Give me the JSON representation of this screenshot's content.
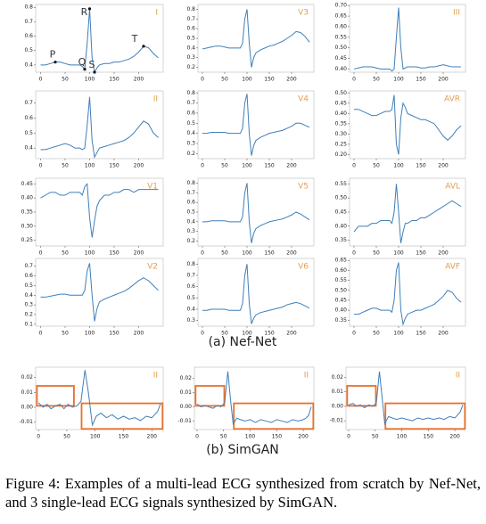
{
  "chart_data": [
    {
      "type": "line",
      "lead": "I",
      "color": "#3f7fba",
      "xlim": [
        -10,
        250
      ],
      "ylim": [
        0.35,
        0.82
      ],
      "xticks": [
        0,
        50,
        100,
        150,
        200
      ],
      "yticks": [
        0.4,
        0.5,
        0.6,
        0.7,
        0.8
      ],
      "x": [
        0,
        10,
        20,
        30,
        40,
        50,
        60,
        70,
        80,
        85,
        90,
        95,
        100,
        105,
        110,
        115,
        120,
        130,
        140,
        150,
        160,
        170,
        180,
        190,
        200,
        210,
        220,
        230,
        240
      ],
      "values": [
        0.4,
        0.4,
        0.41,
        0.42,
        0.42,
        0.41,
        0.4,
        0.4,
        0.4,
        0.39,
        0.37,
        0.55,
        0.79,
        0.45,
        0.35,
        0.38,
        0.4,
        0.41,
        0.41,
        0.42,
        0.42,
        0.43,
        0.44,
        0.46,
        0.49,
        0.53,
        0.52,
        0.48,
        0.45
      ],
      "annotations": [
        {
          "label": "P",
          "x": 30,
          "y": 0.42
        },
        {
          "label": "Q",
          "x": 90,
          "y": 0.37
        },
        {
          "label": "R",
          "x": 100,
          "y": 0.79
        },
        {
          "label": "S",
          "x": 110,
          "y": 0.35
        },
        {
          "label": "T",
          "x": 210,
          "y": 0.53
        }
      ]
    },
    {
      "type": "line",
      "lead": "V3",
      "color": "#3f7fba",
      "xlim": [
        -10,
        250
      ],
      "ylim": [
        0.15,
        0.85
      ],
      "xticks": [
        0,
        50,
        100,
        150,
        200
      ],
      "yticks": [
        0.2,
        0.3,
        0.4,
        0.5,
        0.6,
        0.7,
        0.8
      ],
      "x": [
        0,
        10,
        20,
        30,
        40,
        50,
        60,
        70,
        80,
        85,
        90,
        95,
        100,
        105,
        110,
        115,
        120,
        130,
        140,
        150,
        160,
        170,
        180,
        190,
        200,
        210,
        220,
        230,
        240
      ],
      "values": [
        0.39,
        0.4,
        0.41,
        0.42,
        0.42,
        0.41,
        0.4,
        0.4,
        0.4,
        0.4,
        0.45,
        0.7,
        0.8,
        0.45,
        0.2,
        0.3,
        0.35,
        0.38,
        0.4,
        0.42,
        0.43,
        0.45,
        0.47,
        0.5,
        0.53,
        0.57,
        0.56,
        0.52,
        0.46
      ]
    },
    {
      "type": "line",
      "lead": "III",
      "color": "#3f7fba",
      "xlim": [
        -10,
        250
      ],
      "ylim": [
        0.385,
        0.705
      ],
      "xticks": [
        0,
        50,
        100,
        150,
        200
      ],
      "yticks": [
        {
          "value": 0.4,
          "label": "0.40"
        },
        0.45,
        {
          "value": 0.5,
          "label": "0.50"
        },
        0.55,
        {
          "value": 0.6,
          "label": "0.60"
        },
        0.65,
        {
          "value": 0.7,
          "label": "0.70"
        }
      ],
      "x": [
        0,
        10,
        20,
        30,
        40,
        50,
        60,
        70,
        80,
        85,
        90,
        95,
        100,
        105,
        110,
        115,
        120,
        130,
        140,
        150,
        160,
        170,
        180,
        190,
        200,
        210,
        220,
        230,
        240
      ],
      "values": [
        0.4,
        0.405,
        0.41,
        0.41,
        0.41,
        0.405,
        0.4,
        0.4,
        0.4,
        0.39,
        0.4,
        0.55,
        0.69,
        0.5,
        0.4,
        0.405,
        0.41,
        0.41,
        0.41,
        0.405,
        0.405,
        0.41,
        0.41,
        0.415,
        0.42,
        0.415,
        0.41,
        0.41,
        0.41
      ]
    },
    {
      "type": "line",
      "lead": "II",
      "color": "#3f7fba",
      "xlim": [
        -10,
        250
      ],
      "ylim": [
        0.33,
        0.78
      ],
      "xticks": [
        0,
        50,
        100,
        150,
        200
      ],
      "yticks": [
        0.4,
        0.5,
        0.6,
        0.7
      ],
      "x": [
        0,
        10,
        20,
        30,
        40,
        50,
        60,
        70,
        80,
        85,
        90,
        95,
        100,
        105,
        110,
        115,
        120,
        130,
        140,
        150,
        160,
        170,
        180,
        190,
        200,
        210,
        220,
        230,
        240
      ],
      "values": [
        0.39,
        0.39,
        0.4,
        0.41,
        0.42,
        0.43,
        0.42,
        0.4,
        0.4,
        0.39,
        0.4,
        0.55,
        0.74,
        0.45,
        0.34,
        0.37,
        0.4,
        0.41,
        0.42,
        0.43,
        0.44,
        0.45,
        0.47,
        0.5,
        0.54,
        0.58,
        0.56,
        0.5,
        0.47
      ]
    },
    {
      "type": "line",
      "lead": "V4",
      "color": "#3f7fba",
      "xlim": [
        -10,
        250
      ],
      "ylim": [
        0.15,
        0.82
      ],
      "xticks": [
        0,
        50,
        100,
        150,
        200
      ],
      "yticks": [
        0.2,
        0.3,
        0.4,
        0.5,
        0.6,
        0.7,
        0.8
      ],
      "x": [
        0,
        10,
        20,
        30,
        40,
        50,
        60,
        70,
        80,
        85,
        90,
        95,
        100,
        105,
        110,
        115,
        120,
        130,
        140,
        150,
        160,
        170,
        180,
        190,
        200,
        210,
        220,
        230,
        240
      ],
      "values": [
        0.4,
        0.4,
        0.41,
        0.41,
        0.41,
        0.41,
        0.4,
        0.4,
        0.4,
        0.4,
        0.45,
        0.7,
        0.79,
        0.4,
        0.18,
        0.28,
        0.33,
        0.36,
        0.38,
        0.4,
        0.41,
        0.42,
        0.43,
        0.45,
        0.47,
        0.5,
        0.5,
        0.48,
        0.46
      ]
    },
    {
      "type": "line",
      "lead": "AVR",
      "color": "#3f7fba",
      "xlim": [
        -10,
        250
      ],
      "ylim": [
        0.18,
        0.51
      ],
      "xticks": [
        0,
        50,
        100,
        150,
        200
      ],
      "yticks": [
        {
          "value": 0.2,
          "label": "0.20"
        },
        0.25,
        {
          "value": 0.3,
          "label": "0.30"
        },
        0.35,
        {
          "value": 0.4,
          "label": "0.40"
        },
        0.45,
        {
          "value": 0.5,
          "label": "0.50"
        }
      ],
      "x": [
        0,
        10,
        20,
        30,
        40,
        50,
        60,
        70,
        80,
        85,
        90,
        95,
        100,
        105,
        110,
        115,
        120,
        130,
        140,
        150,
        160,
        170,
        180,
        190,
        200,
        210,
        220,
        230,
        240
      ],
      "values": [
        0.42,
        0.42,
        0.41,
        0.4,
        0.39,
        0.39,
        0.4,
        0.41,
        0.41,
        0.42,
        0.49,
        0.25,
        0.2,
        0.38,
        0.45,
        0.43,
        0.4,
        0.39,
        0.38,
        0.37,
        0.37,
        0.36,
        0.35,
        0.32,
        0.29,
        0.27,
        0.29,
        0.32,
        0.34
      ]
    },
    {
      "type": "line",
      "lead": "V1",
      "color": "#3f7fba",
      "xlim": [
        -10,
        250
      ],
      "ylim": [
        0.23,
        0.47
      ],
      "xticks": [
        0,
        50,
        100,
        150,
        200
      ],
      "yticks": [
        0.25,
        {
          "value": 0.3,
          "label": "0.30"
        },
        0.35,
        {
          "value": 0.4,
          "label": "0.40"
        },
        0.45
      ],
      "x": [
        0,
        10,
        20,
        30,
        40,
        50,
        60,
        70,
        80,
        85,
        90,
        95,
        100,
        105,
        110,
        115,
        120,
        130,
        140,
        150,
        160,
        170,
        180,
        190,
        200,
        210,
        220,
        230,
        240
      ],
      "values": [
        0.4,
        0.41,
        0.42,
        0.42,
        0.41,
        0.41,
        0.42,
        0.42,
        0.42,
        0.41,
        0.44,
        0.45,
        0.33,
        0.26,
        0.32,
        0.37,
        0.39,
        0.41,
        0.41,
        0.42,
        0.42,
        0.43,
        0.43,
        0.42,
        0.43,
        0.43,
        0.43,
        0.43,
        0.43
      ]
    },
    {
      "type": "line",
      "lead": "V5",
      "color": "#3f7fba",
      "xlim": [
        -10,
        250
      ],
      "ylim": [
        0.15,
        0.85
      ],
      "xticks": [
        0,
        50,
        100,
        150,
        200
      ],
      "yticks": [
        0.2,
        0.3,
        0.4,
        0.5,
        0.6,
        0.7,
        0.8
      ],
      "x": [
        0,
        10,
        20,
        30,
        40,
        50,
        60,
        70,
        80,
        85,
        90,
        95,
        100,
        105,
        110,
        115,
        120,
        130,
        140,
        150,
        160,
        170,
        180,
        190,
        200,
        210,
        220,
        230,
        240
      ],
      "values": [
        0.4,
        0.4,
        0.41,
        0.41,
        0.41,
        0.41,
        0.4,
        0.4,
        0.4,
        0.4,
        0.45,
        0.7,
        0.8,
        0.4,
        0.18,
        0.28,
        0.33,
        0.36,
        0.38,
        0.4,
        0.41,
        0.42,
        0.43,
        0.45,
        0.47,
        0.5,
        0.48,
        0.45,
        0.42
      ]
    },
    {
      "type": "line",
      "lead": "AVL",
      "color": "#3f7fba",
      "xlim": [
        -10,
        250
      ],
      "ylim": [
        0.33,
        0.57
      ],
      "xticks": [
        0,
        50,
        100,
        150,
        200
      ],
      "yticks": [
        0.35,
        {
          "value": 0.4,
          "label": "0.40"
        },
        0.45,
        {
          "value": 0.5,
          "label": "0.50"
        },
        0.55
      ],
      "x": [
        0,
        10,
        20,
        30,
        40,
        50,
        60,
        70,
        80,
        85,
        90,
        95,
        100,
        105,
        110,
        115,
        120,
        130,
        140,
        150,
        160,
        170,
        180,
        190,
        200,
        210,
        220,
        230,
        240
      ],
      "values": [
        0.38,
        0.4,
        0.4,
        0.4,
        0.41,
        0.41,
        0.42,
        0.42,
        0.42,
        0.41,
        0.45,
        0.55,
        0.45,
        0.34,
        0.38,
        0.41,
        0.41,
        0.42,
        0.42,
        0.43,
        0.43,
        0.44,
        0.45,
        0.46,
        0.47,
        0.48,
        0.49,
        0.48,
        0.47
      ]
    },
    {
      "type": "line",
      "lead": "V2",
      "color": "#3f7fba",
      "xlim": [
        -10,
        250
      ],
      "ylim": [
        0.08,
        0.78
      ],
      "xticks": [
        0,
        50,
        100,
        150,
        200
      ],
      "yticks": [
        0.1,
        0.2,
        0.3,
        0.4,
        0.5,
        0.6,
        0.7
      ],
      "x": [
        0,
        10,
        20,
        30,
        40,
        50,
        60,
        70,
        80,
        85,
        90,
        95,
        100,
        105,
        110,
        115,
        120,
        130,
        140,
        150,
        160,
        170,
        180,
        190,
        200,
        210,
        220,
        230,
        240
      ],
      "values": [
        0.38,
        0.38,
        0.39,
        0.4,
        0.41,
        0.41,
        0.4,
        0.4,
        0.4,
        0.4,
        0.45,
        0.65,
        0.73,
        0.4,
        0.13,
        0.26,
        0.33,
        0.36,
        0.38,
        0.4,
        0.42,
        0.44,
        0.47,
        0.51,
        0.55,
        0.58,
        0.55,
        0.5,
        0.45
      ]
    },
    {
      "type": "line",
      "lead": "V6",
      "color": "#3f7fba",
      "xlim": [
        -10,
        250
      ],
      "ylim": [
        0.25,
        0.85
      ],
      "xticks": [
        0,
        50,
        100,
        150,
        200
      ],
      "yticks": [
        0.3,
        0.4,
        0.5,
        0.6,
        0.7,
        0.8
      ],
      "x": [
        0,
        10,
        20,
        30,
        40,
        50,
        60,
        70,
        80,
        85,
        90,
        95,
        100,
        105,
        110,
        115,
        120,
        130,
        140,
        150,
        160,
        170,
        180,
        190,
        200,
        210,
        220,
        230,
        240
      ],
      "values": [
        0.39,
        0.39,
        0.4,
        0.4,
        0.4,
        0.4,
        0.39,
        0.39,
        0.39,
        0.39,
        0.45,
        0.7,
        0.8,
        0.45,
        0.27,
        0.32,
        0.35,
        0.37,
        0.38,
        0.39,
        0.4,
        0.41,
        0.42,
        0.44,
        0.45,
        0.46,
        0.45,
        0.43,
        0.41
      ]
    },
    {
      "type": "line",
      "lead": "AVF",
      "color": "#3f7fba",
      "xlim": [
        -10,
        250
      ],
      "ylim": [
        0.32,
        0.66
      ],
      "xticks": [
        0,
        50,
        100,
        150,
        200
      ],
      "yticks": [
        0.35,
        {
          "value": 0.4,
          "label": "0.40"
        },
        0.45,
        {
          "value": 0.5,
          "label": "0.50"
        },
        0.55,
        {
          "value": 0.6,
          "label": "0.60"
        },
        0.65
      ],
      "x": [
        0,
        10,
        20,
        30,
        40,
        50,
        60,
        70,
        80,
        85,
        90,
        95,
        100,
        105,
        110,
        115,
        120,
        130,
        140,
        150,
        160,
        170,
        180,
        190,
        200,
        210,
        220,
        230,
        240
      ],
      "values": [
        0.38,
        0.38,
        0.39,
        0.4,
        0.41,
        0.41,
        0.4,
        0.4,
        0.4,
        0.39,
        0.45,
        0.6,
        0.64,
        0.4,
        0.33,
        0.36,
        0.38,
        0.39,
        0.4,
        0.4,
        0.41,
        0.42,
        0.43,
        0.45,
        0.47,
        0.5,
        0.49,
        0.46,
        0.44
      ]
    },
    {
      "type": "line",
      "lead": "II",
      "color": "#3f7fba",
      "xlim": [
        -5,
        220
      ],
      "ylim": [
        -0.015,
        0.027
      ],
      "xticks": [
        0,
        50,
        100,
        150,
        200
      ],
      "yticks": [
        -0.01,
        {
          "value": 0,
          "label": "0.00"
        },
        0.01,
        0.02
      ],
      "x": [
        0,
        8,
        15,
        22,
        30,
        38,
        45,
        52,
        60,
        68,
        75,
        82,
        88,
        95,
        102,
        110,
        120,
        130,
        140,
        150,
        160,
        170,
        180,
        190,
        200,
        205,
        210,
        215
      ],
      "values": [
        0.003,
        0.0,
        0.002,
        -0.001,
        0.001,
        0.002,
        -0.001,
        0.002,
        0.0,
        0.001,
        0.004,
        0.025,
        0.01,
        -0.012,
        -0.006,
        -0.004,
        -0.007,
        -0.005,
        -0.008,
        -0.006,
        -0.008,
        -0.007,
        -0.009,
        -0.006,
        -0.007,
        -0.005,
        -0.003,
        0.002
      ]
    },
    {
      "type": "line",
      "lead": "II",
      "color": "#3f7fba",
      "xlim": [
        -5,
        220
      ],
      "ylim": [
        -0.016,
        0.028
      ],
      "xticks": [
        0,
        50,
        100,
        150,
        200
      ],
      "yticks": [
        -0.01,
        {
          "value": 0,
          "label": "0.00"
        },
        0.01,
        0.02
      ],
      "x": [
        0,
        8,
        15,
        22,
        30,
        38,
        45,
        52,
        58,
        63,
        68,
        75,
        82,
        90,
        100,
        110,
        120,
        130,
        140,
        150,
        160,
        170,
        180,
        190,
        200,
        205,
        210,
        215
      ],
      "values": [
        0.002,
        0.0,
        0.001,
        0.0,
        -0.001,
        0.001,
        0.0,
        0.003,
        0.025,
        0.005,
        -0.012,
        -0.008,
        -0.009,
        -0.01,
        -0.009,
        -0.011,
        -0.009,
        -0.01,
        -0.011,
        -0.009,
        -0.01,
        -0.011,
        -0.009,
        -0.01,
        -0.009,
        -0.008,
        -0.006,
        0.0
      ]
    },
    {
      "type": "line",
      "lead": "II",
      "color": "#3f7fba",
      "xlim": [
        -5,
        220
      ],
      "ylim": [
        -0.016,
        0.027
      ],
      "xticks": [
        0,
        50,
        100,
        150,
        200
      ],
      "yticks": [
        -0.01,
        {
          "value": 0,
          "label": "0.00"
        },
        0.01,
        0.02
      ],
      "x": [
        0,
        8,
        15,
        22,
        30,
        38,
        45,
        52,
        58,
        63,
        68,
        75,
        82,
        90,
        100,
        110,
        120,
        130,
        140,
        150,
        160,
        170,
        180,
        190,
        200,
        205,
        210,
        215
      ],
      "values": [
        0.001,
        0.002,
        0.0,
        0.001,
        -0.001,
        0.001,
        0.0,
        0.002,
        0.024,
        0.006,
        -0.012,
        -0.007,
        -0.008,
        -0.009,
        -0.008,
        -0.009,
        -0.01,
        -0.008,
        -0.009,
        -0.008,
        -0.009,
        -0.008,
        -0.009,
        -0.007,
        -0.008,
        -0.006,
        -0.004,
        0.001
      ]
    }
  ],
  "subfigures": [
    "(a) Nef-Net",
    "(b) SimGAN"
  ],
  "caption": "Figure 4: Examples of a multi-lead ECG synthesized from scratch by Nef-Net, and 3 single-lead ECG signals synthesized by SimGAN."
}
